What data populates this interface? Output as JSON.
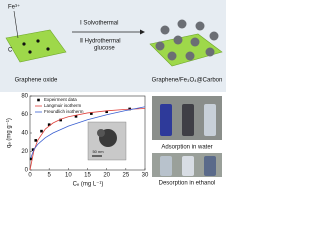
{
  "scheme": {
    "ion_label": "Fe³⁺",
    "carbon_label": "C",
    "step_1": "Ⅰ  Solvothermal",
    "step_2": "Ⅱ  Hydrothermal",
    "step_2b": "glucose",
    "left_label": "Graphene oxide",
    "right_label": "Graphene/Fe₃O₄@Carbon"
  },
  "photos": {
    "top_caption": "Adsorption in water",
    "bottom_caption": "Desorption in ethanol"
  },
  "inset": {
    "scale_bar": "50 nm"
  },
  "chart_data": {
    "type": "scatter",
    "xlabel": "Cₑ (mg L⁻¹)",
    "ylabel": "qₑ (mg g⁻¹)",
    "xlim": [
      0,
      30
    ],
    "ylim": [
      0,
      80
    ],
    "xticks": [
      0,
      5,
      10,
      15,
      20,
      25,
      30
    ],
    "yticks": [
      0,
      20,
      40,
      60,
      80
    ],
    "legend": "upper left",
    "series": [
      {
        "name": "Expeirment data",
        "color": "#000000",
        "mode": "markers",
        "x": [
          0.3,
          0.8,
          1.5,
          3,
          5,
          8,
          12,
          16,
          20,
          26
        ],
        "values": [
          12,
          22,
          32,
          42,
          49,
          54,
          58,
          61,
          63,
          66
        ]
      },
      {
        "name": "Langmuir isotherm",
        "color": "#e0403a",
        "mode": "line",
        "x": [
          0,
          1,
          2,
          4,
          6,
          8,
          10,
          15,
          20,
          25,
          30
        ],
        "values": [
          0,
          20.6,
          32,
          44.3,
          50.8,
          54.9,
          57.6,
          61.7,
          64,
          65.5,
          66.5
        ]
      },
      {
        "name": "Freundlich isotherm",
        "color": "#3a5fd0",
        "mode": "line",
        "x": [
          0.2,
          1,
          2,
          4,
          6,
          10,
          15,
          20,
          25,
          30
        ],
        "values": [
          12.9,
          22,
          27.7,
          34.9,
          40,
          47.4,
          54.3,
          59.7,
          64.3,
          68.4
        ]
      }
    ]
  }
}
